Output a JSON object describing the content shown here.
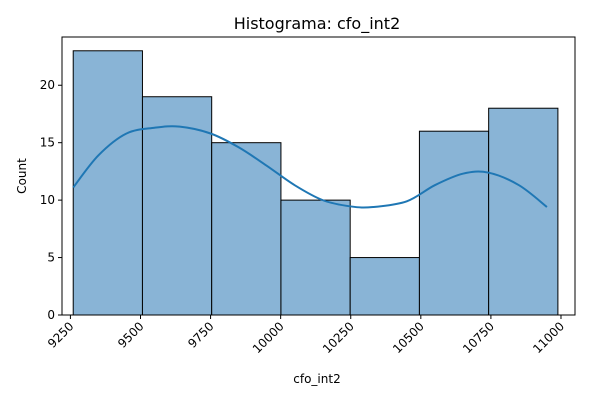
{
  "chart_data": {
    "type": "bar",
    "title": "Histograma: cfo_int2",
    "xlabel": "cfo_int2",
    "ylabel": "Count",
    "xlim": [
      9220,
      11050
    ],
    "ylim": [
      0,
      24.2
    ],
    "xticks": [
      9250,
      9500,
      9750,
      10000,
      10250,
      10500,
      10750,
      11000
    ],
    "yticks": [
      0,
      5,
      10,
      15,
      20
    ],
    "bins": [
      {
        "start": 9260,
        "end": 9507,
        "count": 23
      },
      {
        "start": 9507,
        "end": 9754,
        "count": 19
      },
      {
        "start": 9754,
        "end": 10001,
        "count": 15
      },
      {
        "start": 10001,
        "end": 10248,
        "count": 10
      },
      {
        "start": 10248,
        "end": 10495,
        "count": 5
      },
      {
        "start": 10495,
        "end": 10742,
        "count": 16
      },
      {
        "start": 10742,
        "end": 10989,
        "count": 18
      }
    ],
    "kde": {
      "x": [
        9260,
        9350,
        9450,
        9550,
        9640,
        9750,
        9850,
        9950,
        10050,
        10150,
        10250,
        10330,
        10450,
        10550,
        10650,
        10740,
        10850,
        10950
      ],
      "y": [
        11.1,
        13.9,
        15.8,
        16.3,
        16.4,
        15.8,
        14.6,
        13.0,
        11.3,
        10.0,
        9.45,
        9.4,
        9.9,
        11.3,
        12.3,
        12.4,
        11.3,
        9.4
      ]
    },
    "grid": false,
    "colors": {
      "bar_fill": "#89b4d6",
      "bar_edge": "#000000",
      "kde_line": "#1f77b4"
    }
  }
}
